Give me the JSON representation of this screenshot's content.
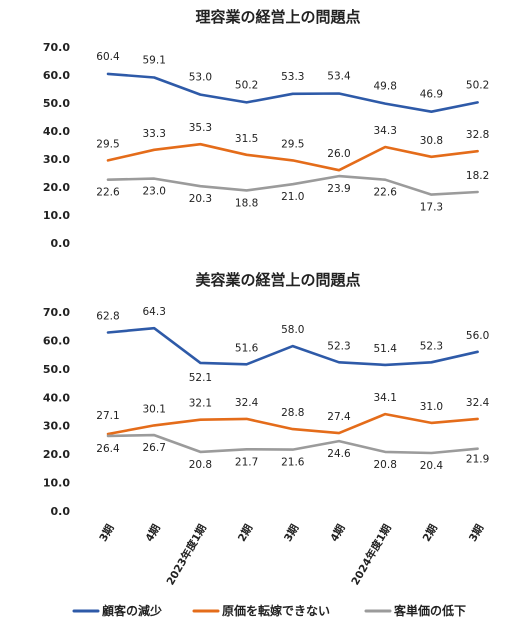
{
  "chart_data": [
    {
      "type": "line",
      "title": "理容業の経営上の問題点",
      "yticks": [
        "0.0",
        "10.0",
        "20.0",
        "30.0",
        "40.0",
        "50.0",
        "60.0",
        "70.0"
      ],
      "ylim": [
        0,
        70
      ],
      "grid": false,
      "series": [
        {
          "name": "顧客の減少",
          "color": "#2e5aa8",
          "values": [
            60.4,
            59.1,
            53.0,
            50.2,
            53.3,
            53.4,
            49.8,
            46.9,
            50.2
          ],
          "labels": [
            "60.4",
            "59.1",
            "53.0",
            "50.2",
            "53.3",
            "53.4",
            "49.8",
            "46.9",
            "50.2"
          ]
        },
        {
          "name": "原価を転嫁できない",
          "color": "#e46c1a",
          "values": [
            29.5,
            33.3,
            35.3,
            31.5,
            29.5,
            26.0,
            34.3,
            30.8,
            32.8
          ],
          "labels": [
            "29.5",
            "33.3",
            "35.3",
            "31.5",
            "29.5",
            "26.0",
            "34.3",
            "30.8",
            "32.8"
          ]
        },
        {
          "name": "客単価の低下",
          "color": "#9b9b9b",
          "values": [
            22.6,
            23.0,
            20.3,
            18.8,
            21.0,
            23.9,
            22.6,
            17.3,
            18.2
          ],
          "labels": [
            "22.6",
            "23.0",
            "20.3",
            "18.8",
            "21.0",
            "23.9",
            "22.6",
            "17.3",
            "18.2"
          ]
        }
      ]
    },
    {
      "type": "line",
      "title": "美容業の経営上の問題点",
      "yticks": [
        "0.0",
        "10.0",
        "20.0",
        "30.0",
        "40.0",
        "50.0",
        "60.0",
        "70.0"
      ],
      "ylim": [
        0,
        70
      ],
      "grid": false,
      "categories": [
        "3期",
        "4期",
        "2023年度1期",
        "2期",
        "3期",
        "4期",
        "2024年度1期",
        "2期",
        "3期"
      ],
      "series": [
        {
          "name": "顧客の減少",
          "color": "#2e5aa8",
          "values": [
            62.8,
            64.3,
            52.1,
            51.6,
            58.0,
            52.3,
            51.4,
            52.3,
            56.0
          ],
          "labels": [
            "62.8",
            "64.3",
            "52.1",
            "51.6",
            "58.0",
            "52.3",
            "51.4",
            "52.3",
            "56.0"
          ]
        },
        {
          "name": "原価を転嫁できない",
          "color": "#e46c1a",
          "values": [
            27.1,
            30.1,
            32.1,
            32.4,
            28.8,
            27.4,
            34.1,
            31.0,
            32.4
          ],
          "labels": [
            "27.1",
            "30.1",
            "32.1",
            "32.4",
            "28.8",
            "27.4",
            "34.1",
            "31.0",
            "32.4"
          ]
        },
        {
          "name": "客単価の低下",
          "color": "#9b9b9b",
          "values": [
            26.4,
            26.7,
            20.8,
            21.7,
            21.6,
            24.6,
            20.8,
            20.4,
            21.9
          ],
          "labels": [
            "26.4",
            "26.7",
            "20.8",
            "21.7",
            "21.6",
            "24.6",
            "20.8",
            "20.4",
            "21.9"
          ]
        }
      ]
    }
  ],
  "legend": {
    "placement": "bottom",
    "items": [
      {
        "label": "顧客の減少",
        "color": "#2e5aa8"
      },
      {
        "label": "原価を転嫁できない",
        "color": "#e46c1a"
      },
      {
        "label": "客単価の低下",
        "color": "#9b9b9b"
      }
    ]
  }
}
